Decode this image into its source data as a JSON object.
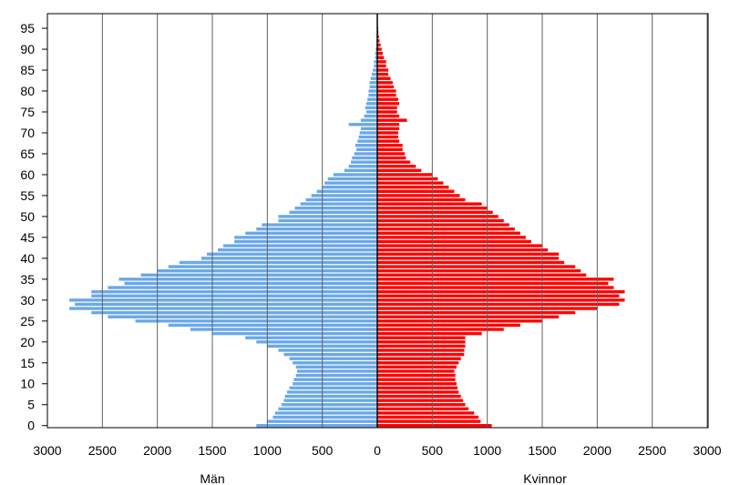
{
  "chart_data": {
    "type": "bar",
    "orientation": "horizontal-pyramid",
    "xlabel_left": "Män",
    "xlabel_right": "Kvinnor",
    "x_ticks": [
      "3000",
      "2500",
      "2000",
      "1500",
      "1000",
      "500",
      "0",
      "500",
      "1000",
      "1500",
      "2000",
      "2500",
      "3000"
    ],
    "y_ticks": [
      "0",
      "5",
      "10",
      "15",
      "20",
      "25",
      "30",
      "35",
      "40",
      "45",
      "50",
      "55",
      "60",
      "65",
      "70",
      "75",
      "80",
      "85",
      "90",
      "95"
    ],
    "xlim": [
      0,
      3000
    ],
    "ylim": [
      0,
      99
    ],
    "grid": true,
    "colors": {
      "men": "#6aa8e8",
      "women": "#ff0000",
      "grid": "#000000",
      "frame": "#000000"
    },
    "ages": [
      0,
      1,
      2,
      3,
      4,
      5,
      6,
      7,
      8,
      9,
      10,
      11,
      12,
      13,
      14,
      15,
      16,
      17,
      18,
      19,
      20,
      21,
      22,
      23,
      24,
      25,
      26,
      27,
      28,
      29,
      30,
      31,
      32,
      33,
      34,
      35,
      36,
      37,
      38,
      39,
      40,
      41,
      42,
      43,
      44,
      45,
      46,
      47,
      48,
      49,
      50,
      51,
      52,
      53,
      54,
      55,
      56,
      57,
      58,
      59,
      60,
      61,
      62,
      63,
      64,
      65,
      66,
      67,
      68,
      69,
      70,
      71,
      72,
      73,
      74,
      75,
      76,
      77,
      78,
      79,
      80,
      81,
      82,
      83,
      84,
      85,
      86,
      87,
      88,
      89,
      90,
      91,
      92,
      93,
      94,
      95,
      96,
      97,
      98
    ],
    "series": [
      {
        "name": "Män",
        "side": "left",
        "values": [
          1100,
          1000,
          950,
          930,
          900,
          870,
          850,
          840,
          820,
          800,
          770,
          760,
          740,
          730,
          740,
          770,
          800,
          850,
          900,
          1000,
          1100,
          1200,
          1500,
          1700,
          1900,
          2200,
          2450,
          2600,
          2800,
          2750,
          2800,
          2600,
          2600,
          2450,
          2300,
          2350,
          2150,
          2000,
          1900,
          1800,
          1600,
          1550,
          1450,
          1400,
          1300,
          1300,
          1200,
          1100,
          1050,
          900,
          900,
          800,
          750,
          700,
          650,
          600,
          550,
          500,
          480,
          450,
          400,
          300,
          260,
          240,
          230,
          210,
          190,
          200,
          180,
          170,
          160,
          150,
          260,
          150,
          120,
          100,
          110,
          100,
          90,
          80,
          80,
          70,
          70,
          60,
          50,
          40,
          30,
          30,
          20,
          20,
          15,
          10,
          8,
          6,
          5,
          4,
          3,
          2,
          2
        ]
      },
      {
        "name": "Kvinnor",
        "side": "right",
        "values": [
          1040,
          940,
          920,
          880,
          830,
          800,
          780,
          760,
          740,
          730,
          720,
          710,
          710,
          700,
          720,
          740,
          760,
          790,
          790,
          800,
          800,
          800,
          950,
          1150,
          1300,
          1500,
          1650,
          1800,
          2000,
          2200,
          2250,
          2200,
          2250,
          2150,
          2100,
          2150,
          1900,
          1850,
          1800,
          1700,
          1650,
          1650,
          1550,
          1500,
          1400,
          1350,
          1300,
          1250,
          1200,
          1150,
          1100,
          1050,
          1000,
          950,
          800,
          750,
          700,
          650,
          600,
          550,
          500,
          400,
          350,
          300,
          260,
          250,
          230,
          230,
          200,
          190,
          190,
          200,
          200,
          270,
          200,
          180,
          180,
          200,
          190,
          170,
          170,
          150,
          140,
          120,
          100,
          100,
          80,
          80,
          60,
          50,
          40,
          30,
          20,
          15,
          10,
          8,
          5,
          4,
          3
        ]
      }
    ]
  }
}
